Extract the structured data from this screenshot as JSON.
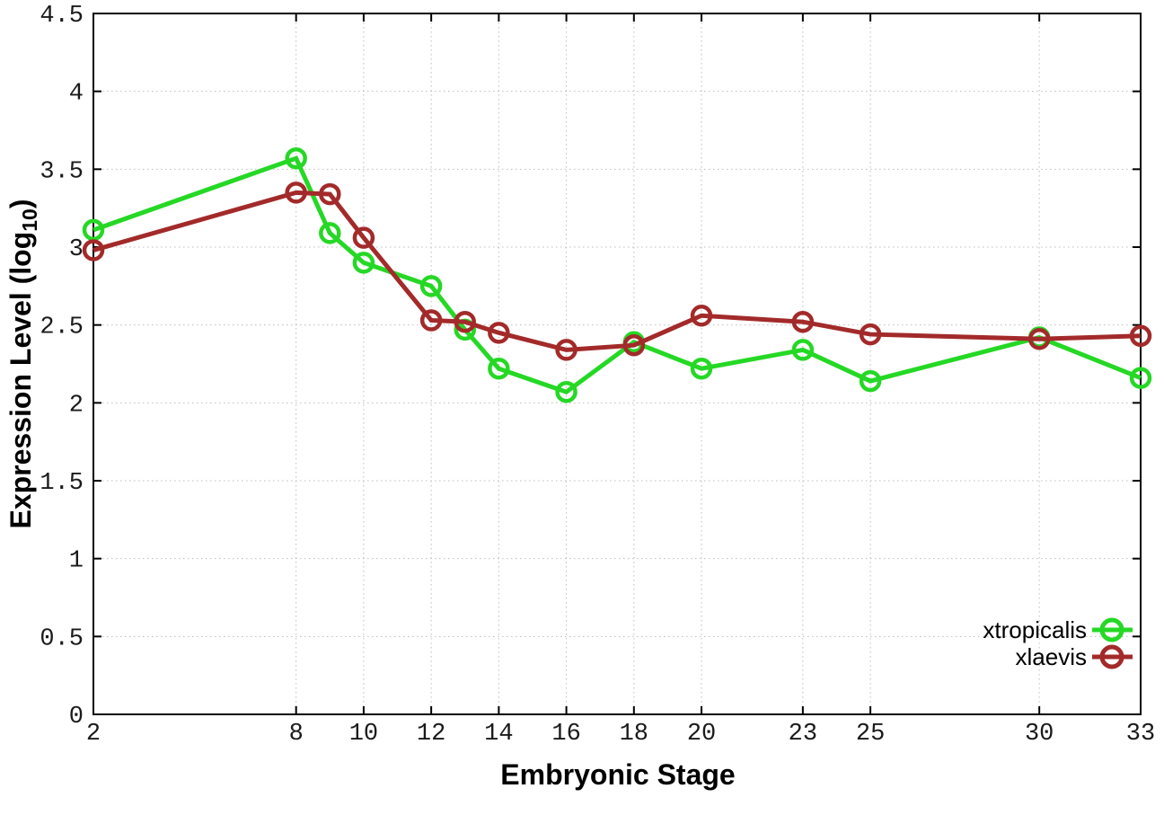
{
  "chart_data": {
    "type": "line",
    "title": "",
    "xlabel": "Embryonic Stage",
    "ylabel": "Expression Level (log10)",
    "ylabel_parts": {
      "main": "Expression Level (log",
      "sub": "10",
      "end": ")"
    },
    "x": [
      2,
      8,
      9,
      10,
      12,
      13,
      14,
      16,
      18,
      20,
      23,
      25,
      30,
      33
    ],
    "series": [
      {
        "name": "xtropicalis",
        "color": "#25d825",
        "marker": "open-circle",
        "values": [
          3.11,
          3.57,
          3.09,
          2.9,
          2.75,
          2.47,
          2.22,
          2.07,
          2.39,
          2.22,
          2.34,
          2.14,
          2.42,
          2.16
        ]
      },
      {
        "name": "xlaevis",
        "color": "#a32a2a",
        "marker": "open-circle",
        "values": [
          2.98,
          3.35,
          3.34,
          3.06,
          2.53,
          2.52,
          2.45,
          2.34,
          2.37,
          2.56,
          2.52,
          2.44,
          2.41,
          2.43
        ]
      }
    ],
    "xlim": [
      2,
      33
    ],
    "ylim": [
      0,
      4.5
    ],
    "xticks": {
      "values": [
        2,
        8,
        10,
        12,
        14,
        16,
        18,
        20,
        23,
        25,
        30,
        33
      ],
      "labels": [
        "2",
        "8",
        "10",
        "12",
        "14",
        "16",
        "18",
        "20",
        "23",
        "25",
        "30",
        "33"
      ]
    },
    "yticks": {
      "values": [
        0,
        0.5,
        1,
        1.5,
        2,
        2.5,
        3,
        3.5,
        4,
        4.5
      ],
      "labels": [
        "0",
        "0.5",
        "1",
        "1.5",
        "2",
        "2.5",
        "3",
        "3.5",
        "4",
        "4.5"
      ]
    },
    "grid": "dotted both axes",
    "legend_position": "inside bottom-right",
    "background_color": "#ffffff",
    "border_color": "#000000",
    "grid_color": "#bdbdbd"
  }
}
